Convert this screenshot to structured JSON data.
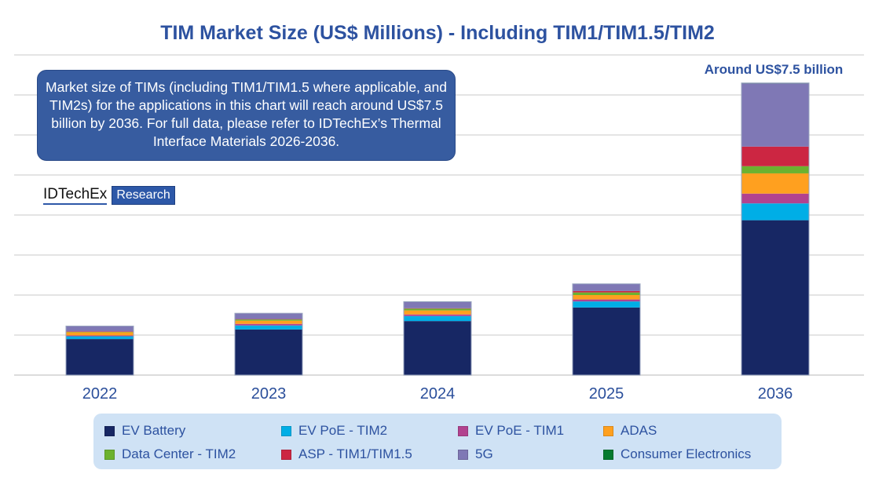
{
  "chart_data": {
    "type": "bar",
    "stacked": true,
    "title": "TIM Market Size (US$ Millions) - Including TIM1/TIM1.5/TIM2",
    "xlabel": "",
    "ylabel": "",
    "ylim": [
      0,
      8000
    ],
    "grid": true,
    "y_tick_labels_shown": false,
    "legend_position": "bottom",
    "categories": [
      "2022",
      "2023",
      "2024",
      "2025",
      "2036"
    ],
    "series": [
      {
        "name": "EV Battery",
        "color": "#172764",
        "values": [
          900,
          1140,
          1350,
          1690,
          3870
        ]
      },
      {
        "name": "EV PoE - TIM2",
        "color": "#00aee6",
        "values": [
          70,
          100,
          125,
          150,
          420
        ]
      },
      {
        "name": "EV PoE - TIM1",
        "color": "#b2428f",
        "values": [
          20,
          40,
          40,
          50,
          245
        ]
      },
      {
        "name": "ADAS",
        "color": "#ffa01f",
        "values": [
          80,
          80,
          100,
          110,
          505
        ]
      },
      {
        "name": "Data Center - TIM2",
        "color": "#6cb22f",
        "values": [
          10,
          30,
          45,
          65,
          180
        ]
      },
      {
        "name": "ASP - TIM1/TIM1.5",
        "color": "#cc2642",
        "values": [
          10,
          10,
          10,
          35,
          490
        ]
      },
      {
        "name": "5G",
        "color": "#7f78b5",
        "values": [
          130,
          140,
          160,
          175,
          1580
        ]
      },
      {
        "name": "Consumer Electronics",
        "color": "#067a2e",
        "values": [
          5,
          5,
          5,
          5,
          10
        ]
      }
    ],
    "annotations": [
      "Around US$7.5 billion"
    ]
  },
  "note": "Market size of TIMs (including TIM1/TIM1.5 where applicable, and TIM2s) for the applications in this chart will reach around US$7.5 billion by 2036. For full data, please refer to IDTechEx’s Thermal Interface Materials 2026-2036.",
  "logo": {
    "name": "IDTechEx",
    "tag": "Research"
  },
  "colors": {
    "title": "#2d52a0",
    "note_bg": "#375ca0",
    "legend_bg": "#cfe2f5"
  }
}
